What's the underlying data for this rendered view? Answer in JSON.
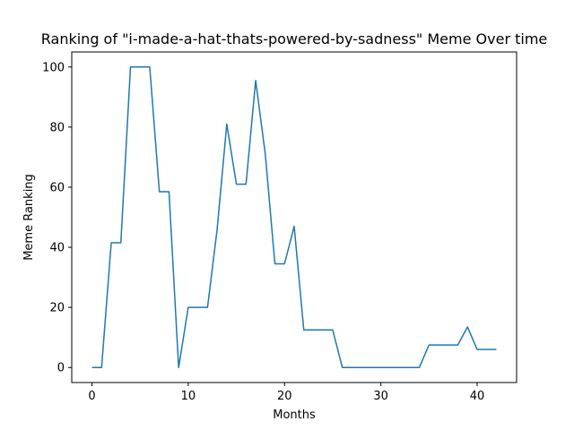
{
  "chart_data": {
    "type": "line",
    "title": "Ranking of \"i-made-a-hat-thats-powered-by-sadness\" Meme Over time",
    "xlabel": "Months",
    "ylabel": "Meme Ranking",
    "xlim": [
      -2.1,
      44.1
    ],
    "ylim": [
      -5,
      105
    ],
    "xticks": [
      0,
      10,
      20,
      30,
      40
    ],
    "yticks": [
      0,
      20,
      40,
      60,
      80,
      100
    ],
    "grid": false,
    "legend": "none",
    "series": [
      {
        "color": "#1f77b4",
        "x": [
          0,
          1,
          2,
          3,
          4,
          5,
          6,
          7,
          8,
          9,
          10,
          11,
          12,
          13,
          14,
          15,
          16,
          17,
          18,
          19,
          20,
          21,
          22,
          23,
          24,
          25,
          26,
          27,
          28,
          29,
          30,
          31,
          32,
          33,
          34,
          35,
          36,
          37,
          38,
          39,
          40,
          41,
          42
        ],
        "values": [
          0,
          0,
          41.5,
          41.5,
          100,
          100,
          100,
          58.5,
          58.5,
          0,
          20,
          20,
          20,
          46,
          81,
          61,
          61,
          95.5,
          71,
          34.5,
          34.5,
          47,
          12.5,
          12.5,
          12.5,
          12.5,
          0,
          0,
          0,
          0,
          0,
          0,
          0,
          0,
          0,
          7.5,
          7.5,
          7.5,
          7.5,
          13.5,
          6,
          6,
          6
        ]
      }
    ]
  }
}
